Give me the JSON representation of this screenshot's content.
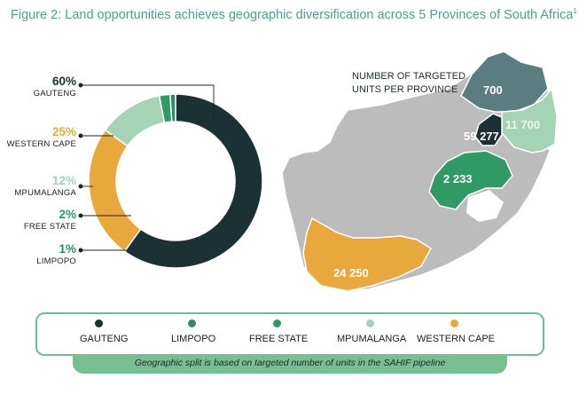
{
  "title": "Figure 2: Land opportunities achieves geographic diversification across 5 Provinces of South Africa",
  "title_footnote": "1",
  "map": {
    "label_line1": "NUMBER OF TARGETED",
    "label_line2": "UNITS PER PROVINCE",
    "values": {
      "limpopo": "700",
      "gauteng": "59 277",
      "mpumalanga": "11 700",
      "free_state": "2 233",
      "western_cape": "24 250"
    }
  },
  "legend": [
    "GAUTENG",
    "LIMPOPO",
    "FREE STATE",
    "MPUMALANGA",
    "WESTERN CAPE"
  ],
  "footer": "Geographic split is  based on targeted number of units in the  SAHIF pipeline",
  "colors": {
    "gauteng": "#1c3133",
    "limpopo": "#2e8c68",
    "free_state": "#2f9a63",
    "mpumalanga": "#a4d3b6",
    "western_cape": "#e9a83b",
    "map_gray": "#bcbcbc",
    "limpopo_map": "#5b7d80",
    "title": "#4fa08b"
  },
  "chart_data": {
    "type": "pie",
    "title": "",
    "donut": true,
    "categories": [
      "GAUTENG",
      "WESTERN CAPE",
      "MPUMALANGA",
      "FREE STATE",
      "LIMPOPO"
    ],
    "values": [
      60,
      25,
      12,
      2,
      1
    ],
    "labels": [
      "60%",
      "25%",
      "12%",
      "2%",
      "1%"
    ],
    "legend_position": "bottom"
  }
}
